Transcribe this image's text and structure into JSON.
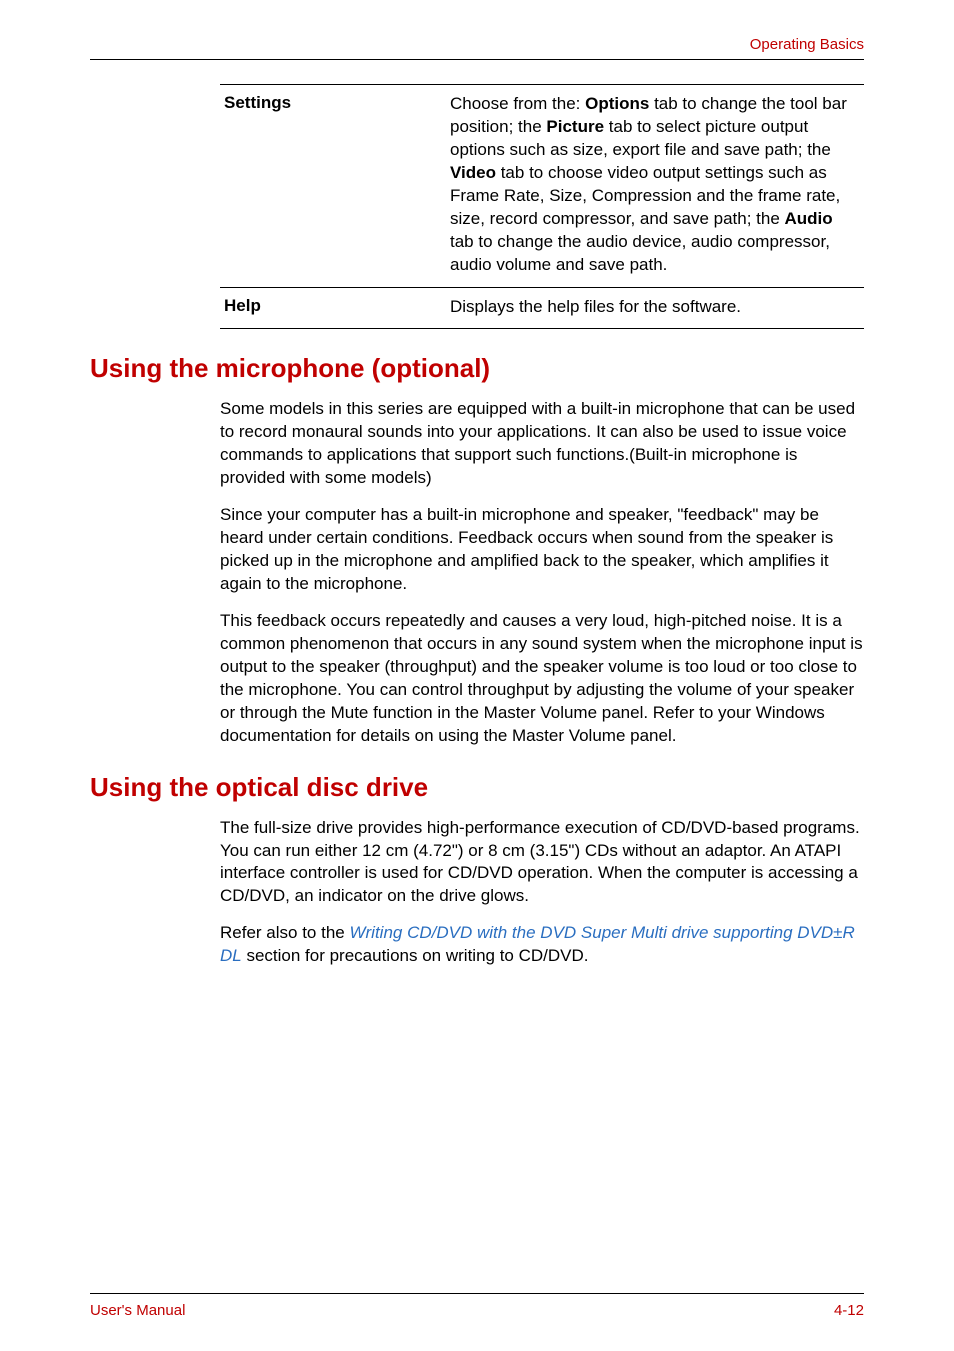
{
  "header": {
    "right": "Operating Basics"
  },
  "colors": {
    "accent": "#c00000",
    "link": "#2a6ec0",
    "text": "#000000",
    "rule": "#000000",
    "bg": "#ffffff"
  },
  "table": {
    "rows": [
      {
        "label": "Settings",
        "desc_segments": [
          {
            "t": "Choose from the: ",
            "b": false
          },
          {
            "t": "Options",
            "b": true
          },
          {
            "t": " tab to change the tool bar position; the ",
            "b": false
          },
          {
            "t": "Picture",
            "b": true
          },
          {
            "t": " tab to select picture output options such as size, export file and save path; the ",
            "b": false
          },
          {
            "t": "Video",
            "b": true
          },
          {
            "t": " tab to choose video output settings such as Frame Rate, Size, Compression and the frame rate, size, record compressor, and save path; the ",
            "b": false
          },
          {
            "t": "Audio",
            "b": true
          },
          {
            "t": " tab to change the audio device, audio compressor, audio volume and save path.",
            "b": false
          }
        ]
      },
      {
        "label": "Help",
        "desc_segments": [
          {
            "t": "Displays the help files for the software.",
            "b": false
          }
        ]
      }
    ]
  },
  "sections": [
    {
      "heading": "Using the microphone (optional)",
      "paragraphs": [
        [
          {
            "t": "Some models in this series are equipped with a built-in microphone that can be used to record monaural sounds into your applications. It can also be used to issue voice commands to applications that support such functions.(Built-in microphone is provided with some models)"
          }
        ],
        [
          {
            "t": "Since your computer has a built-in microphone and speaker, \"feedback\" may be heard under certain conditions. Feedback occurs when sound from the speaker is picked up in the microphone and amplified back to the speaker, which amplifies it again to the microphone."
          }
        ],
        [
          {
            "t": "This feedback occurs repeatedly and causes a very loud, high-pitched noise. It is a common phenomenon that occurs in any sound system when the microphone input is output to the speaker (throughput) and the speaker volume is too loud or too close to the microphone. You can control throughput by adjusting the volume of your speaker or through the Mute function in the Master Volume panel. Refer to your Windows documentation for details on using the Master Volume panel."
          }
        ]
      ]
    },
    {
      "heading": "Using the optical disc drive",
      "paragraphs": [
        [
          {
            "t": "The full-size drive provides high-performance execution of CD/DVD-based programs. You can run either 12 cm (4.72\") or 8 cm (3.15\") CDs without an adaptor. An ATAPI interface controller is used for CD/DVD operation. When the computer is accessing a CD/DVD, an indicator on the drive glows."
          }
        ],
        [
          {
            "t": "Refer also to the "
          },
          {
            "t": "Writing CD/DVD with the DVD Super Multi drive supporting DVD±R DL",
            "link": true
          },
          {
            "t": " section for precautions on writing to CD/DVD."
          }
        ]
      ]
    }
  ],
  "footer": {
    "left": "User's Manual",
    "right": "4-12"
  }
}
